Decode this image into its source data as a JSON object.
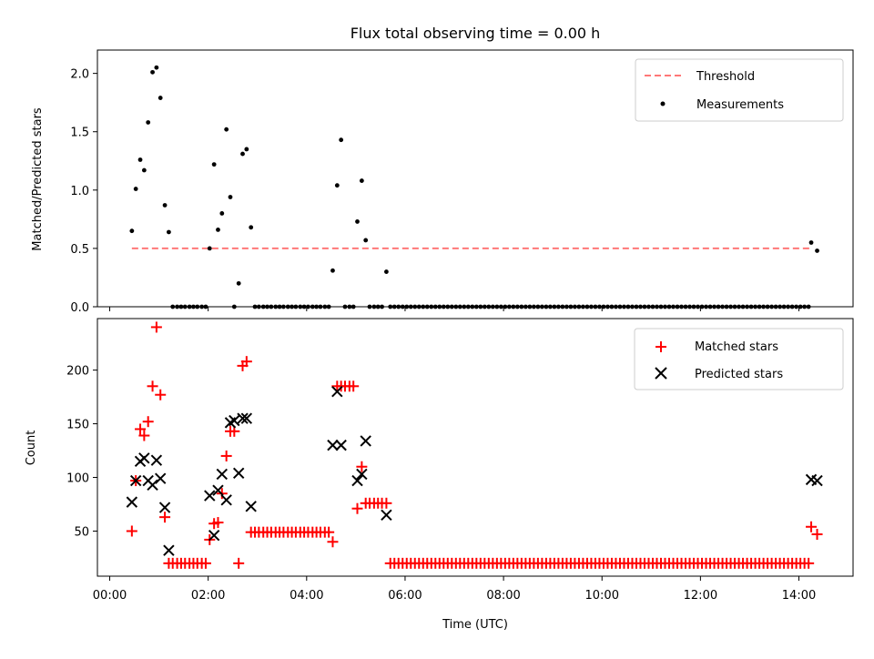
{
  "chart_data": [
    {
      "type": "scatter",
      "title": "Flux total observing time = 0.00 h",
      "xlabel": "",
      "ylabel": "Matched/Predicted stars",
      "ylim": [
        0,
        2.2
      ],
      "yticks": [
        "0.0",
        "0.5",
        "1.0",
        "1.5",
        "2.0"
      ],
      "ytick_values": [
        0,
        0.5,
        1.0,
        1.5,
        2.0
      ],
      "threshold": {
        "name": "Threshold",
        "value": 0.5,
        "x_start": 0.45,
        "x_end": 14.25,
        "color": "#ff7777"
      },
      "legend": {
        "placement": "top-right",
        "entries": [
          "Threshold",
          "Measurements"
        ]
      },
      "series": [
        {
          "name": "Measurements",
          "color": "#000000",
          "marker": "dot",
          "x": [
            0.45,
            0.53,
            0.62,
            0.7,
            0.78,
            0.87,
            0.95,
            1.03,
            1.12,
            1.2,
            1.28,
            1.37,
            1.45,
            1.53,
            1.62,
            1.7,
            1.78,
            1.87,
            1.95,
            2.03,
            2.12,
            2.2,
            2.28,
            2.37,
            2.45,
            2.53,
            2.62,
            2.7,
            2.78,
            2.87,
            2.95,
            3.03,
            3.12,
            3.2,
            3.28,
            3.37,
            3.45,
            3.53,
            3.62,
            3.7,
            3.78,
            3.87,
            3.95,
            4.03,
            4.12,
            4.2,
            4.28,
            4.37,
            4.45,
            4.53,
            4.62,
            4.7,
            4.78,
            4.87,
            4.95,
            5.03,
            5.12,
            5.2,
            5.28,
            5.37,
            5.45,
            5.53,
            5.62,
            5.7,
            14.25,
            14.37
          ],
          "y": [
            0.65,
            1.01,
            1.26,
            1.17,
            1.58,
            2.01,
            2.05,
            1.79,
            0.87,
            0.64,
            0,
            0,
            0,
            0,
            0,
            0,
            0,
            0,
            0,
            0.5,
            1.22,
            0.66,
            0.8,
            1.52,
            0.94,
            0,
            0.2,
            1.31,
            1.35,
            0.68,
            0,
            0,
            0,
            0,
            0,
            0,
            0,
            0,
            0,
            0,
            0,
            0,
            0,
            0,
            0,
            0,
            0,
            0,
            0,
            0.31,
            1.04,
            1.43,
            0,
            0,
            0,
            0.73,
            1.08,
            0.57,
            0,
            0,
            0,
            0,
            0.3,
            0,
            0.55,
            0.48
          ]
        }
      ],
      "baseline_zeros": {
        "x_start": 5.7,
        "x_end": 14.2,
        "step": 0.0833,
        "value": 0
      }
    },
    {
      "type": "scatter",
      "title": "",
      "xlabel": "Time (UTC)",
      "ylabel": "Count",
      "ylim": [
        8,
        248
      ],
      "xlim": [
        -0.25,
        15.1
      ],
      "yticks": [
        "50",
        "100",
        "150",
        "200"
      ],
      "ytick_values": [
        50,
        100,
        150,
        200
      ],
      "xticks": [
        "00:00",
        "02:00",
        "04:00",
        "06:00",
        "08:00",
        "10:00",
        "12:00",
        "14:00"
      ],
      "xtick_values": [
        0,
        2,
        4,
        6,
        8,
        10,
        12,
        14
      ],
      "legend": {
        "placement": "top-right",
        "entries": [
          "Matched stars",
          "Predicted stars"
        ]
      },
      "series": [
        {
          "name": "Matched stars",
          "color": "#ff0000",
          "marker": "plus",
          "x": [
            0.45,
            0.53,
            0.62,
            0.7,
            0.78,
            0.87,
            0.95,
            1.03,
            1.12,
            1.2,
            1.28,
            1.37,
            1.45,
            1.53,
            1.62,
            1.7,
            1.78,
            1.87,
            1.95,
            2.03,
            2.12,
            2.2,
            2.28,
            2.37,
            2.45,
            2.53,
            2.62,
            2.7,
            2.78,
            2.87,
            2.95,
            3.03,
            3.12,
            3.2,
            3.28,
            3.37,
            3.45,
            3.53,
            3.62,
            3.7,
            3.78,
            3.87,
            3.95,
            4.03,
            4.12,
            4.2,
            4.28,
            4.37,
            4.45,
            4.53,
            4.62,
            4.7,
            4.78,
            4.87,
            4.95,
            5.03,
            5.12,
            5.2,
            5.28,
            5.37,
            5.45,
            5.53,
            5.62,
            14.25,
            14.37
          ],
          "y": [
            50,
            97,
            145,
            139,
            152,
            185,
            240,
            177,
            63,
            20,
            20,
            20,
            20,
            20,
            20,
            20,
            20,
            20,
            20,
            42,
            57,
            58,
            85,
            120,
            143,
            143,
            20,
            204,
            208,
            49,
            49,
            49,
            49,
            49,
            49,
            49,
            49,
            49,
            49,
            49,
            49,
            49,
            49,
            49,
            49,
            49,
            49,
            49,
            49,
            40,
            185,
            185,
            185,
            185,
            185,
            71,
            110,
            76,
            76,
            76,
            76,
            76,
            76,
            54,
            47
          ]
        },
        {
          "name": "Predicted stars",
          "color": "#000000",
          "marker": "x",
          "x": [
            0.45,
            0.53,
            0.62,
            0.7,
            0.78,
            0.87,
            0.95,
            1.03,
            1.12,
            1.2,
            2.03,
            2.12,
            2.2,
            2.28,
            2.37,
            2.45,
            2.53,
            2.62,
            2.7,
            2.78,
            2.87,
            4.53,
            4.62,
            4.7,
            5.03,
            5.12,
            5.2,
            5.62,
            14.25,
            14.37
          ],
          "y": [
            77,
            97,
            115,
            118,
            97,
            93,
            116,
            99,
            72,
            32,
            83,
            46,
            88,
            103,
            79,
            151,
            153,
            104,
            155,
            155,
            73,
            130,
            180,
            130,
            97,
            103,
            134,
            65,
            98,
            97
          ]
        }
      ],
      "baseline_matched": {
        "x_start": 5.7,
        "x_end": 14.2,
        "step": 0.0833,
        "value": 20
      }
    }
  ]
}
